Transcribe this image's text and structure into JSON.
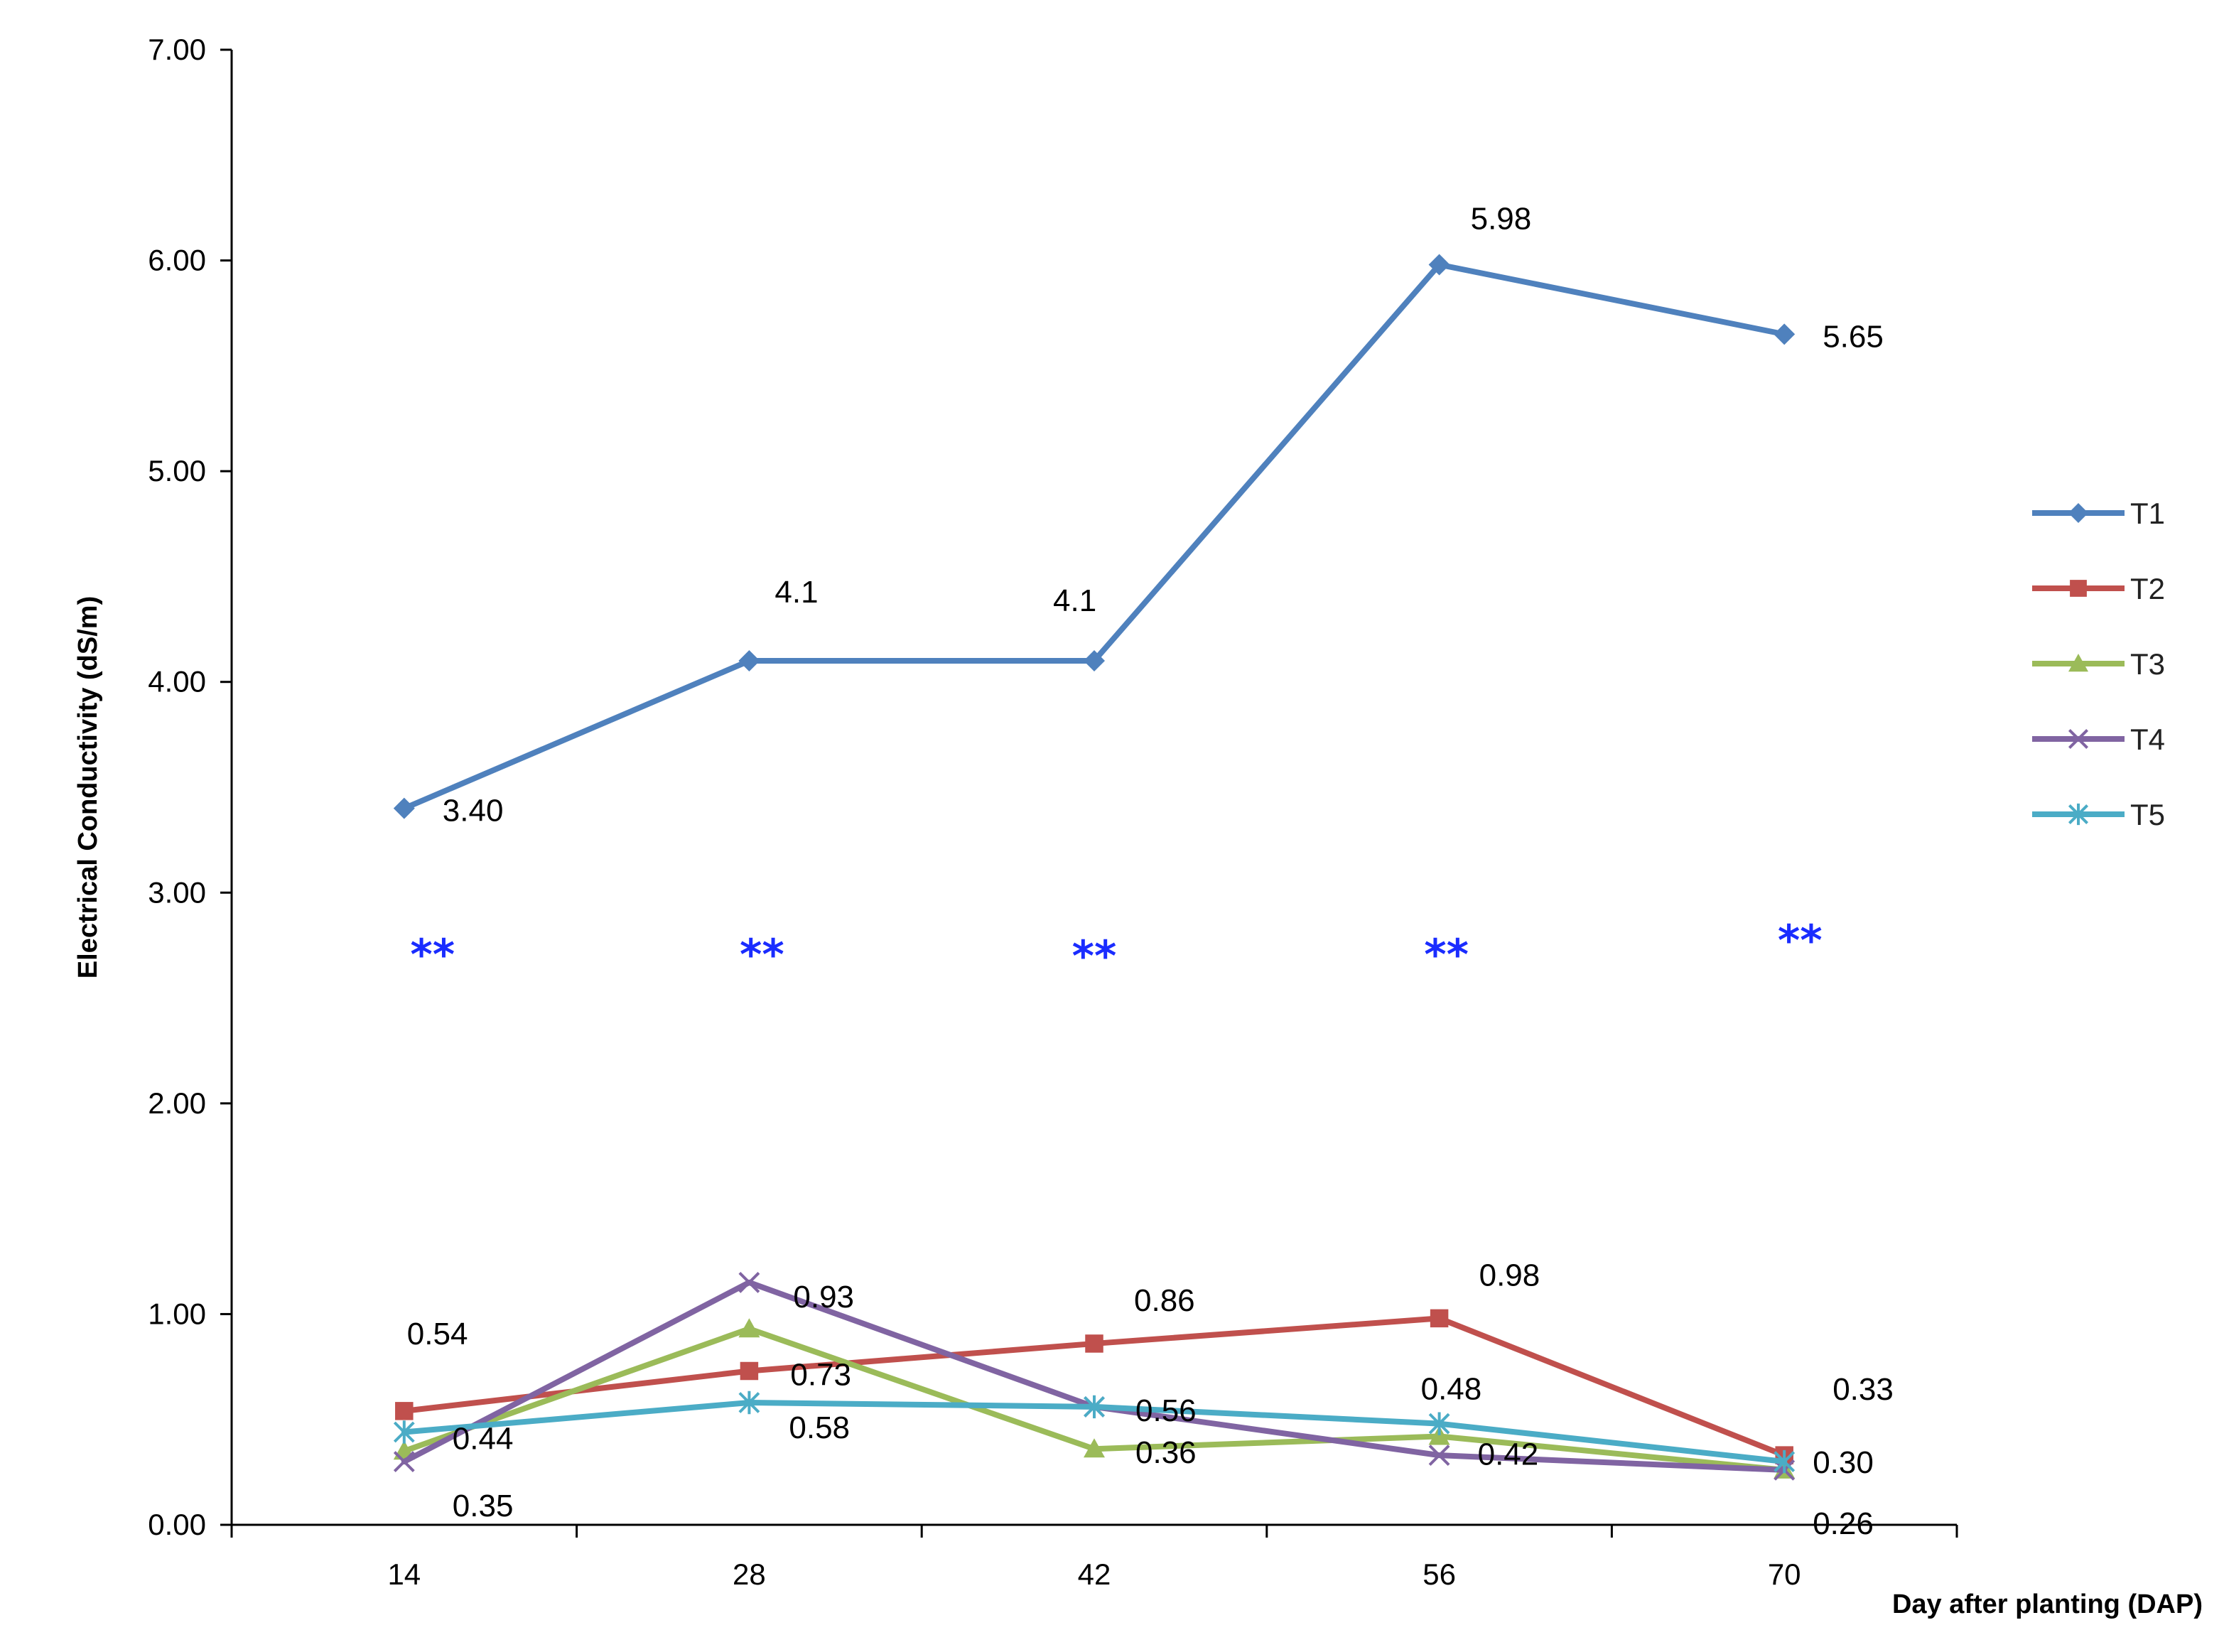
{
  "chart_data": {
    "type": "line",
    "title": "",
    "xlabel": "Day after planting (DAP)",
    "ylabel": "Electrical Conductivity (dS/m)",
    "categories": [
      "14",
      "28",
      "42",
      "56",
      "70"
    ],
    "ylim": [
      0,
      7
    ],
    "yticks": [
      "0.00",
      "1.00",
      "2.00",
      "3.00",
      "4.00",
      "5.00",
      "6.00",
      "7.00"
    ],
    "grid": false,
    "legend_position": "right",
    "series": [
      {
        "name": "T1",
        "color": "#4f81bd",
        "marker": "diamond",
        "values": [
          3.4,
          4.1,
          4.1,
          5.98,
          5.65
        ]
      },
      {
        "name": "T2",
        "color": "#c0504d",
        "marker": "square",
        "values": [
          0.54,
          0.73,
          0.86,
          0.98,
          0.33
        ]
      },
      {
        "name": "T3",
        "color": "#9bbb59",
        "marker": "triangle",
        "values": [
          0.35,
          0.93,
          0.36,
          0.42,
          0.26
        ]
      },
      {
        "name": "T4",
        "color": "#8064a2",
        "marker": "x",
        "values": [
          0.3,
          1.15,
          0.56,
          0.33,
          0.26
        ]
      },
      {
        "name": "T5",
        "color": "#4bacc6",
        "marker": "star",
        "values": [
          0.44,
          0.58,
          0.56,
          0.48,
          0.3
        ]
      }
    ],
    "data_labels": [
      {
        "text": "3.40",
        "x": "14",
        "y": 3.4
      },
      {
        "text": "4.1",
        "x": "28",
        "y": 4.1
      },
      {
        "text": "4.1",
        "x": "42",
        "y": 4.1
      },
      {
        "text": "5.98",
        "x": "56",
        "y": 5.98
      },
      {
        "text": "5.65",
        "x": "70",
        "y": 5.65
      },
      {
        "text": "0.54",
        "x": "14",
        "y": 0.54
      },
      {
        "text": "0.44",
        "x": "14",
        "y": 0.44
      },
      {
        "text": "0.35",
        "x": "14",
        "y": 0.35
      },
      {
        "text": "0.93",
        "x": "28",
        "y": 0.93
      },
      {
        "text": "0.73",
        "x": "28",
        "y": 0.73
      },
      {
        "text": "0.58",
        "x": "28",
        "y": 0.58
      },
      {
        "text": "0.86",
        "x": "42",
        "y": 0.86
      },
      {
        "text": "0.56",
        "x": "42",
        "y": 0.56
      },
      {
        "text": "0.36",
        "x": "42",
        "y": 0.36
      },
      {
        "text": "0.98",
        "x": "56",
        "y": 0.98
      },
      {
        "text": "0.48",
        "x": "56",
        "y": 0.48
      },
      {
        "text": "0.42",
        "x": "56",
        "y": 0.42
      },
      {
        "text": "0.33",
        "x": "70",
        "y": 0.33
      },
      {
        "text": "0.30",
        "x": "70",
        "y": 0.3
      },
      {
        "text": "0.26",
        "x": "70",
        "y": 0.26
      }
    ],
    "significance_marks": [
      {
        "text": "**",
        "x": "14"
      },
      {
        "text": "**",
        "x": "28"
      },
      {
        "text": "**",
        "x": "42"
      },
      {
        "text": "**",
        "x": "56"
      },
      {
        "text": "**",
        "x": "70"
      }
    ]
  }
}
